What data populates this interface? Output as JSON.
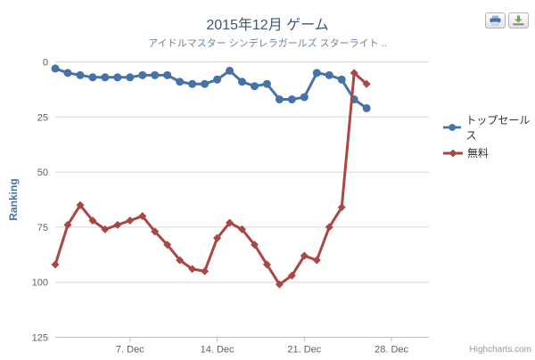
{
  "header": {
    "title": "2015年12月 ゲーム",
    "subtitle": "アイドルマスター シンデレラガールズ スターライト .."
  },
  "chart_data": {
    "type": "line",
    "title": "2015年12月 ゲーム",
    "subtitle": "アイドルマスター シンデレラガールズ スターライト ..",
    "xlabel": "",
    "ylabel": "Ranking",
    "y_axis": {
      "reversed": true,
      "min": 0,
      "max": 125,
      "ticks": [
        0,
        25,
        50,
        75,
        100,
        125
      ]
    },
    "x_axis": {
      "range_days": [
        1,
        31
      ],
      "tick_days": [
        7,
        14,
        21,
        28
      ],
      "tick_labels": [
        "7. Dec",
        "14. Dec",
        "21. Dec",
        "28. Dec"
      ]
    },
    "x": [
      1,
      2,
      3,
      4,
      5,
      6,
      7,
      8,
      9,
      10,
      11,
      12,
      13,
      14,
      15,
      16,
      17,
      18,
      19,
      20,
      21,
      22,
      23,
      24,
      25,
      26
    ],
    "series": [
      {
        "name": "トップセールス",
        "color": "#4572A7",
        "marker": "circle",
        "values": [
          3,
          5,
          6,
          7,
          7,
          7,
          7,
          6,
          6,
          6,
          9,
          10,
          10,
          8,
          4,
          9,
          11,
          10,
          17,
          17,
          16,
          5,
          6,
          8,
          17,
          21
        ]
      },
      {
        "name": "無料",
        "color": "#AA4643",
        "marker": "diamond",
        "values": [
          92,
          74,
          65,
          72,
          76,
          74,
          72,
          70,
          77,
          83,
          90,
          94,
          95,
          80,
          73,
          76,
          83,
          92,
          101,
          97,
          88,
          90,
          75,
          66,
          5,
          10
        ]
      }
    ],
    "legend_position": "right",
    "grid": true
  },
  "legend": {
    "items": [
      {
        "label": "トップセールス",
        "color": "#4572A7",
        "marker": "circle"
      },
      {
        "label": "無料",
        "color": "#AA4643",
        "marker": "diamond"
      }
    ]
  },
  "toolbar": {
    "print_button": "print-chart",
    "download_button": "download-chart"
  },
  "credit": {
    "label": "Highcharts.com"
  },
  "colors": {
    "grid": "#D8D8D8",
    "axis_line": "#C0C0C0",
    "tick_label": "#606060",
    "title": "#3E576F",
    "subtitle": "#6D869F",
    "axis_title": "#4572A7",
    "legend_text": "#333333"
  }
}
